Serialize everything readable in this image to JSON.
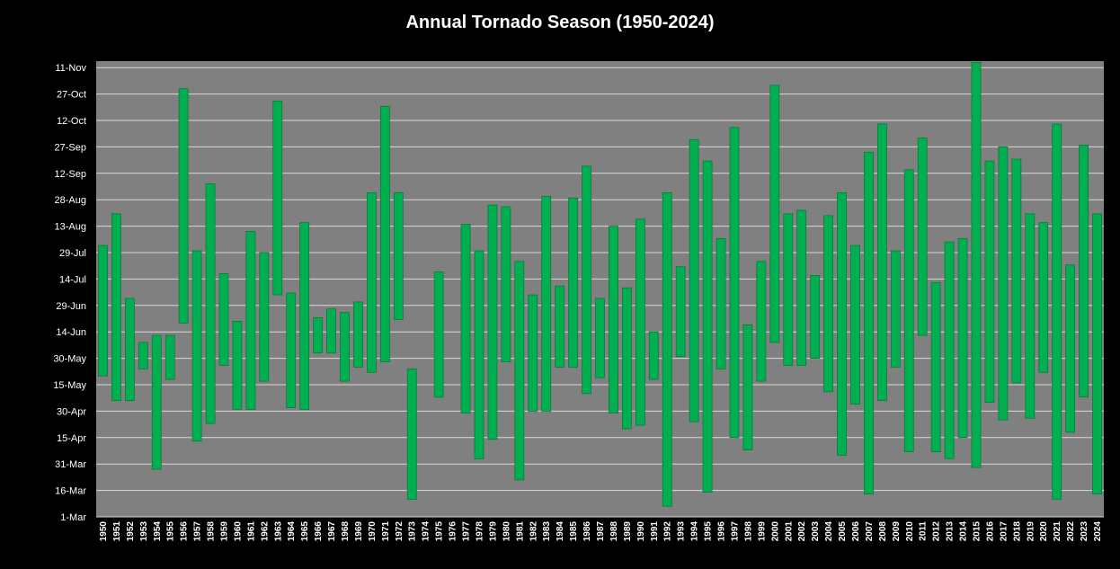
{
  "chart_data": {
    "type": "bar",
    "subtype": "floating-range",
    "title": "Annual Tornado Season (1950-2024)",
    "xlabel": "",
    "ylabel": "",
    "y_unit": "date (day of year)",
    "ylim": [
      "1-Mar",
      "11-Nov"
    ],
    "y_ticks": [
      "1-Mar",
      "16-Mar",
      "31-Mar",
      "15-Apr",
      "30-Apr",
      "15-May",
      "30-May",
      "14-Jun",
      "29-Jun",
      "14-Jul",
      "29-Jul",
      "13-Aug",
      "28-Aug",
      "12-Sep",
      "27-Sep",
      "12-Oct",
      "27-Oct",
      "11-Nov"
    ],
    "grid": true,
    "legend": "none",
    "bar_color": "#00b050",
    "plot_background": "#808080",
    "categories": [
      "1950",
      "1951",
      "1952",
      "1953",
      "1954",
      "1955",
      "1956",
      "1957",
      "1958",
      "1959",
      "1960",
      "1961",
      "1962",
      "1963",
      "1964",
      "1965",
      "1966",
      "1967",
      "1968",
      "1969",
      "1970",
      "1971",
      "1972",
      "1973",
      "1974",
      "1975",
      "1976",
      "1977",
      "1978",
      "1979",
      "1980",
      "1981",
      "1982",
      "1983",
      "1984",
      "1985",
      "1986",
      "1987",
      "1988",
      "1989",
      "1990",
      "1991",
      "1992",
      "1993",
      "1994",
      "1995",
      "1996",
      "1997",
      "1998",
      "1999",
      "2000",
      "2001",
      "2002",
      "2003",
      "2004",
      "2005",
      "2006",
      "2007",
      "2008",
      "2009",
      "2010",
      "2011",
      "2012",
      "2013",
      "2014",
      "2015",
      "2016",
      "2017",
      "2018",
      "2019",
      "2020",
      "2021",
      "2022",
      "2023",
      "2024"
    ],
    "series": [
      {
        "values": [
          [
            "20-May",
            "2-Aug"
          ],
          [
            "6-May",
            "20-Aug"
          ],
          [
            "6-May",
            "3-Jul"
          ],
          [
            "24-May",
            "8-Jun"
          ],
          [
            "28-Mar",
            "12-Jun"
          ],
          [
            "18-May",
            "12-Jun"
          ],
          [
            "19-Jun",
            "30-Oct"
          ],
          [
            "13-Apr",
            "30-Jul"
          ],
          [
            "23-Apr",
            "6-Sep"
          ],
          [
            "26-May",
            "17-Jul"
          ],
          [
            "1-May",
            "20-Jun"
          ],
          [
            "1-May",
            "10-Aug"
          ],
          [
            "17-May",
            "29-Jul"
          ],
          [
            "5-Jul",
            "23-Oct"
          ],
          [
            "2-May",
            "6-Jul"
          ],
          [
            "1-May",
            "15-Aug"
          ],
          [
            "2-Jun",
            "22-Jun"
          ],
          [
            "2-Jun",
            "27-Jun"
          ],
          [
            "17-May",
            "25-Jun"
          ],
          [
            "25-May",
            "1-Jul"
          ],
          [
            "22-May",
            "1-Sep"
          ],
          [
            "28-May",
            "20-Oct"
          ],
          [
            "21-Jun",
            "1-Sep"
          ],
          [
            "11-Mar",
            "24-May"
          ],
          null,
          [
            "8-May",
            "18-Jul"
          ],
          null,
          [
            "29-Apr",
            "14-Aug"
          ],
          [
            "3-Apr",
            "30-Jul"
          ],
          [
            "14-Apr",
            "25-Aug"
          ],
          [
            "28-May",
            "24-Aug"
          ],
          [
            "22-Mar",
            "24-Jul"
          ],
          [
            "30-Apr",
            "5-Jul"
          ],
          [
            "30-Apr",
            "30-Aug"
          ],
          [
            "25-May",
            "10-Jul"
          ],
          [
            "25-May",
            "29-Aug"
          ],
          [
            "10-May",
            "16-Sep"
          ],
          [
            "19-May",
            "3-Jul"
          ],
          [
            "29-Apr",
            "13-Aug"
          ],
          [
            "20-Apr",
            "9-Jul"
          ],
          [
            "22-Apr",
            "17-Aug"
          ],
          [
            "18-May",
            "14-Jun"
          ],
          [
            "7-Mar",
            "1-Sep"
          ],
          [
            "31-May",
            "21-Jul"
          ],
          [
            "24-Apr",
            "1-Oct"
          ],
          [
            "15-Mar",
            "19-Sep"
          ],
          [
            "24-May",
            "6-Aug"
          ],
          [
            "15-Apr",
            "8-Oct"
          ],
          [
            "8-Apr",
            "18-Jun"
          ],
          [
            "17-May",
            "24-Jul"
          ],
          [
            "8-Jun",
            "1-Nov"
          ],
          [
            "26-May",
            "20-Aug"
          ],
          [
            "26-May",
            "22-Aug"
          ],
          [
            "30-May",
            "16-Jul"
          ],
          [
            "11-May",
            "19-Aug"
          ],
          [
            "5-Apr",
            "1-Sep"
          ],
          [
            "4-May",
            "2-Aug"
          ],
          [
            "14-Mar",
            "24-Sep"
          ],
          [
            "6-May",
            "10-Oct"
          ],
          [
            "25-May",
            "30-Jul"
          ],
          [
            "7-Apr",
            "14-Sep"
          ],
          [
            "12-Jun",
            "2-Oct"
          ],
          [
            "7-Apr",
            "12-Jul"
          ],
          [
            "3-Apr",
            "4-Aug"
          ],
          [
            "15-Apr",
            "6-Aug"
          ],
          [
            "29-Mar",
            "14-Nov"
          ],
          [
            "5-May",
            "19-Sep"
          ],
          [
            "25-Apr",
            "27-Sep"
          ],
          [
            "16-May",
            "20-Sep"
          ],
          [
            "26-Apr",
            "20-Aug"
          ],
          [
            "22-May",
            "15-Aug"
          ],
          [
            "11-Mar",
            "10-Oct"
          ],
          [
            "18-Apr",
            "22-Jul"
          ],
          [
            "8-May",
            "28-Sep"
          ],
          [
            "14-Mar",
            "20-Aug"
          ]
        ]
      }
    ]
  }
}
